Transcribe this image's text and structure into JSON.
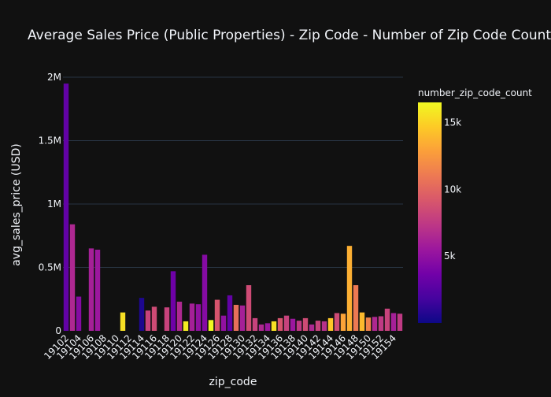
{
  "chart_data": {
    "type": "bar",
    "title": "Average Sales Price (Public Properties) - Zip Code - Number of Zip Code Count",
    "xlabel": "zip_code",
    "ylabel": "avg_sales_price (USD)",
    "ylim": [
      0,
      2050000
    ],
    "y_ticks": [
      {
        "value": 0,
        "label": "0"
      },
      {
        "value": 500000,
        "label": "0.5M"
      },
      {
        "value": 1000000,
        "label": "1M"
      },
      {
        "value": 1500000,
        "label": "1.5M"
      },
      {
        "value": 2000000,
        "label": "2M"
      }
    ],
    "x_tick_labels": [
      "19102",
      "19104",
      "19106",
      "19108",
      "19110",
      "19112",
      "19114",
      "19116",
      "19118",
      "19120",
      "19122",
      "19124",
      "19126",
      "19128",
      "19130",
      "19132",
      "19134",
      "19136",
      "19138",
      "19140",
      "19142",
      "19144",
      "19146",
      "19148",
      "19150",
      "19152",
      "19154"
    ],
    "grid": true,
    "colorscale": "plasma",
    "colorbar": {
      "title": "number_zip_code_count",
      "range": [
        0,
        16500
      ],
      "ticks": [
        {
          "value": 5000,
          "label": "5k"
        },
        {
          "value": 10000,
          "label": "10k"
        },
        {
          "value": 15000,
          "label": "15k"
        }
      ]
    },
    "bars": [
      {
        "zip": "19102",
        "value": 1950000,
        "count": 3000
      },
      {
        "zip": "19103",
        "value": 840000,
        "count": 6500
      },
      {
        "zip": "19104",
        "value": 270000,
        "count": 4500
      },
      {
        "zip": "19106",
        "value": 650000,
        "count": 6000
      },
      {
        "zip": "19107",
        "value": 640000,
        "count": 5500
      },
      {
        "zip": "19111",
        "value": 145000,
        "count": 15500
      },
      {
        "zip": "19114",
        "value": 260000,
        "count": 500
      },
      {
        "zip": "19115",
        "value": 160000,
        "count": 8000
      },
      {
        "zip": "19116",
        "value": 190000,
        "count": 8500
      },
      {
        "zip": "19118",
        "value": 185000,
        "count": 8000
      },
      {
        "zip": "19119",
        "value": 470000,
        "count": 3500
      },
      {
        "zip": "19120",
        "value": 230000,
        "count": 6500
      },
      {
        "zip": "19121",
        "value": 75000,
        "count": 16000
      },
      {
        "zip": "19122",
        "value": 215000,
        "count": 6000
      },
      {
        "zip": "19123",
        "value": 210000,
        "count": 5000
      },
      {
        "zip": "19124",
        "value": 600000,
        "count": 4500
      },
      {
        "zip": "19125",
        "value": 85000,
        "count": 16500
      },
      {
        "zip": "19126",
        "value": 245000,
        "count": 9000
      },
      {
        "zip": "19127",
        "value": 120000,
        "count": 5000
      },
      {
        "zip": "19128",
        "value": 280000,
        "count": 3000
      },
      {
        "zip": "19129",
        "value": 205000,
        "count": 10500
      },
      {
        "zip": "19130",
        "value": 200000,
        "count": 6000
      },
      {
        "zip": "19131",
        "value": 360000,
        "count": 8500
      },
      {
        "zip": "19132",
        "value": 100000,
        "count": 8000
      },
      {
        "zip": "19133",
        "value": 50000,
        "count": 6500
      },
      {
        "zip": "19134",
        "value": 60000,
        "count": 5500
      },
      {
        "zip": "19135",
        "value": 75000,
        "count": 15500
      },
      {
        "zip": "19136",
        "value": 100000,
        "count": 9000
      },
      {
        "zip": "19137",
        "value": 120000,
        "count": 8000
      },
      {
        "zip": "19138",
        "value": 95000,
        "count": 5500
      },
      {
        "zip": "19139",
        "value": 80000,
        "count": 7500
      },
      {
        "zip": "19140",
        "value": 100000,
        "count": 8500
      },
      {
        "zip": "19141",
        "value": 50000,
        "count": 6500
      },
      {
        "zip": "19142",
        "value": 80000,
        "count": 8000
      },
      {
        "zip": "19143",
        "value": 75000,
        "count": 7000
      },
      {
        "zip": "19144",
        "value": 100000,
        "count": 14500
      },
      {
        "zip": "19145",
        "value": 140000,
        "count": 8500
      },
      {
        "zip": "19146",
        "value": 135000,
        "count": 13000
      },
      {
        "zip": "19147",
        "value": 670000,
        "count": 13500
      },
      {
        "zip": "19148",
        "value": 360000,
        "count": 11000
      },
      {
        "zip": "19149",
        "value": 145000,
        "count": 14000
      },
      {
        "zip": "19150",
        "value": 105000,
        "count": 11500
      },
      {
        "zip": "19151",
        "value": 110000,
        "count": 6500
      },
      {
        "zip": "19152",
        "value": 115000,
        "count": 7500
      },
      {
        "zip": "19153",
        "value": 175000,
        "count": 8000
      },
      {
        "zip": "19154",
        "value": 140000,
        "count": 6000
      },
      {
        "zip": "19155",
        "value": 135000,
        "count": 7500
      }
    ]
  }
}
